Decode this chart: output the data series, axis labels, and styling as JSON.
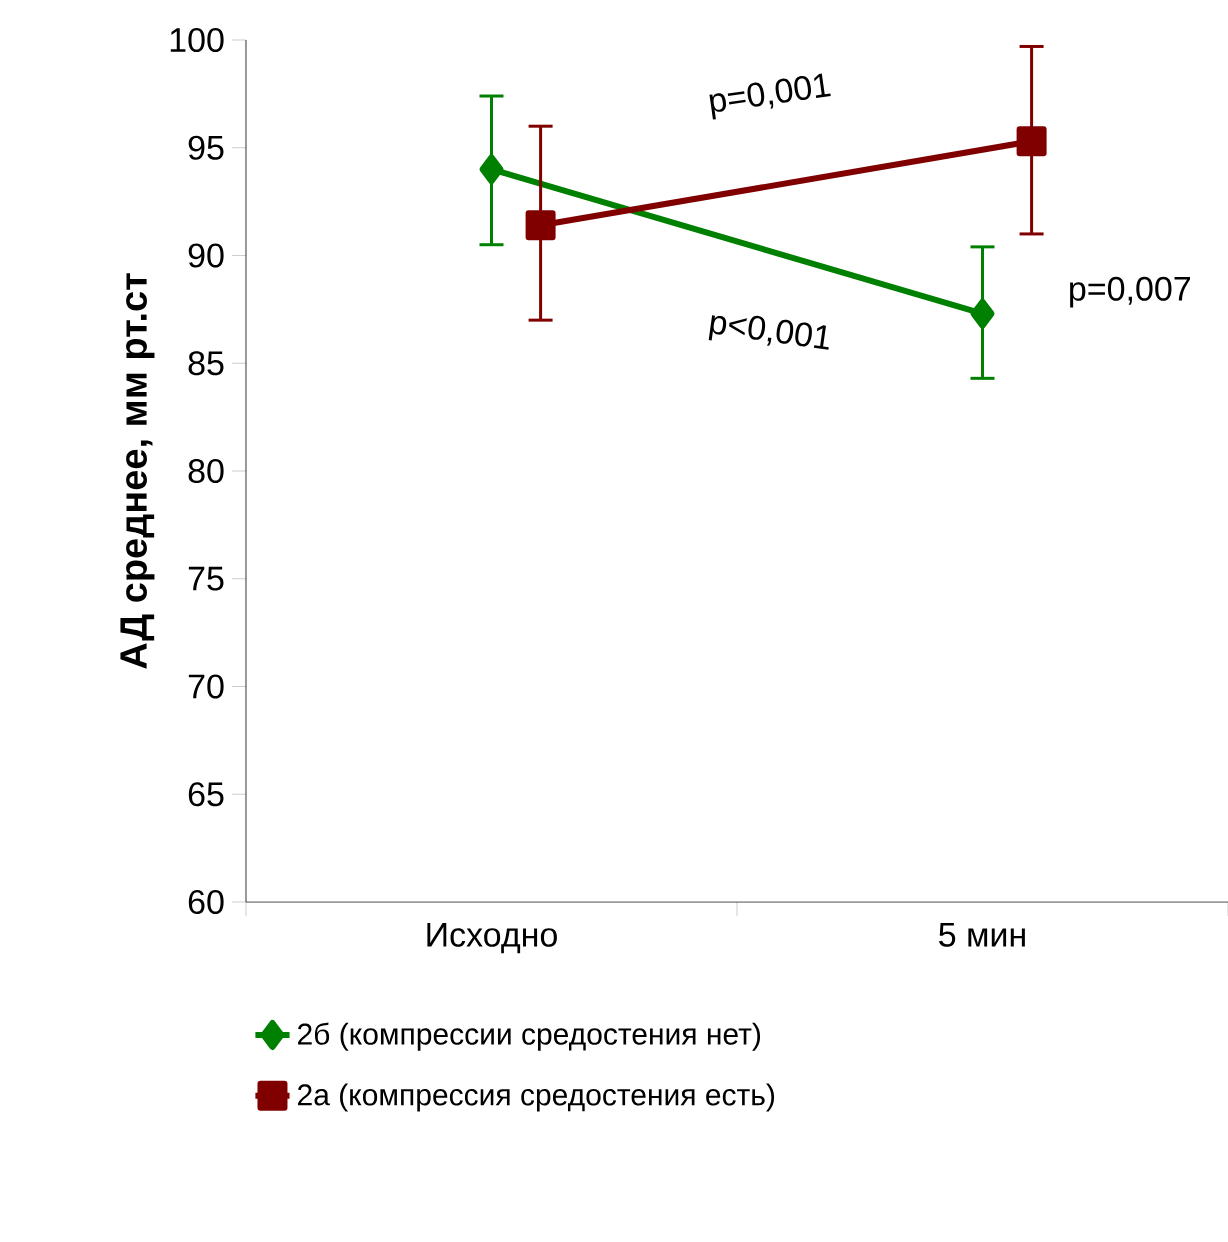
{
  "chart_data": {
    "type": "line",
    "ylabel": "АД среднее, мм рт.ст",
    "categories": [
      "Исходно",
      "5 мин"
    ],
    "series": [
      {
        "name": "2б (компрессии средостения нет)",
        "color": "#008000",
        "marker": "diamond",
        "values": [
          94.0,
          87.3
        ],
        "errors": [
          [
            90.5,
            97.4
          ],
          [
            84.3,
            90.4
          ]
        ]
      },
      {
        "name": "2а (компрессия средостения есть)",
        "color": "#800000",
        "marker": "square",
        "values": [
          91.4,
          95.3
        ],
        "errors": [
          [
            87.0,
            96.0
          ],
          [
            91.0,
            99.7
          ]
        ]
      }
    ],
    "ylim": [
      60,
      100
    ],
    "yticks": [
      60,
      65,
      70,
      75,
      80,
      85,
      90,
      95,
      100
    ],
    "grid": false,
    "legend": "bottom",
    "annotations": [
      "p=0,001",
      "p<0,001",
      "p=0,007"
    ]
  }
}
